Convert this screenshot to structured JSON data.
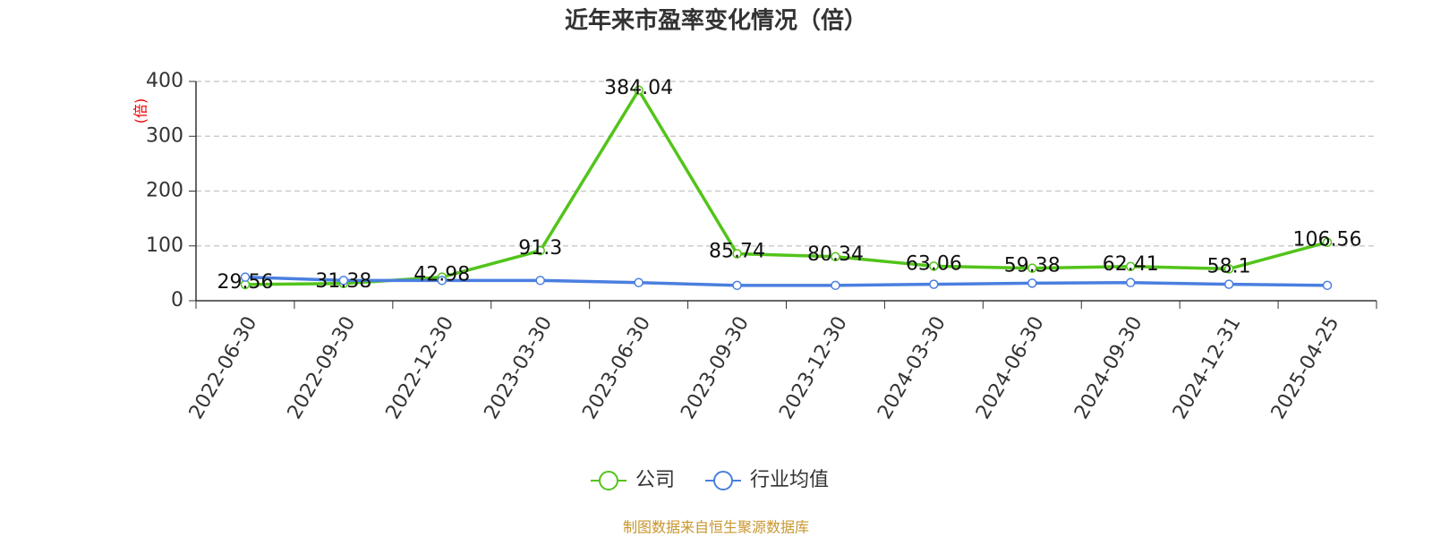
{
  "chart_data": {
    "type": "line",
    "title": "近年来市盈率变化情况（倍）",
    "y_label": "(倍)",
    "categories": [
      "2022-06-30",
      "2022-09-30",
      "2022-12-30",
      "2023-03-30",
      "2023-06-30",
      "2023-09-30",
      "2023-12-30",
      "2024-03-30",
      "2024-06-30",
      "2024-09-30",
      "2024-12-31",
      "2025-04-25"
    ],
    "series": [
      {
        "name": "公司",
        "color": "#52c41a",
        "labels": true,
        "values": [
          29.56,
          31.38,
          42.98,
          91.3,
          384.04,
          85.74,
          80.34,
          63.06,
          59.38,
          62.41,
          58.1,
          106.56
        ]
      },
      {
        "name": "行业均值",
        "color": "#4a7fe0",
        "labels": false,
        "values": [
          43,
          37,
          37,
          37,
          33,
          28,
          28,
          30,
          32,
          33,
          30,
          28
        ]
      }
    ],
    "ylim": [
      0,
      400
    ],
    "yticks": [
      0,
      100,
      200,
      300,
      400
    ],
    "grid": true,
    "source": "制图数据来自恒生聚源数据库"
  }
}
